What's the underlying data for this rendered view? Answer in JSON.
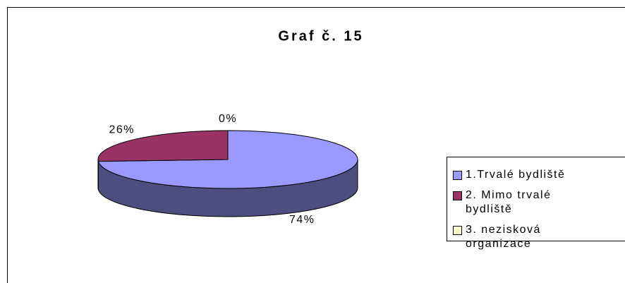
{
  "chart_data": {
    "type": "pie3d",
    "title": "Graf č. 15",
    "categories": [
      "1.Trvalé bydliště",
      "2. Mimo trvalé bydliště",
      "3. nezisková organizace"
    ],
    "values": [
      74,
      26,
      0
    ],
    "value_labels": [
      "74%",
      "26%",
      "0%"
    ],
    "colors": [
      "#9999ff",
      "#993366",
      "#ffffcc"
    ],
    "side_colors": [
      "#4d4d80",
      "#4d1a33",
      "#808066"
    ],
    "legend": "right"
  }
}
